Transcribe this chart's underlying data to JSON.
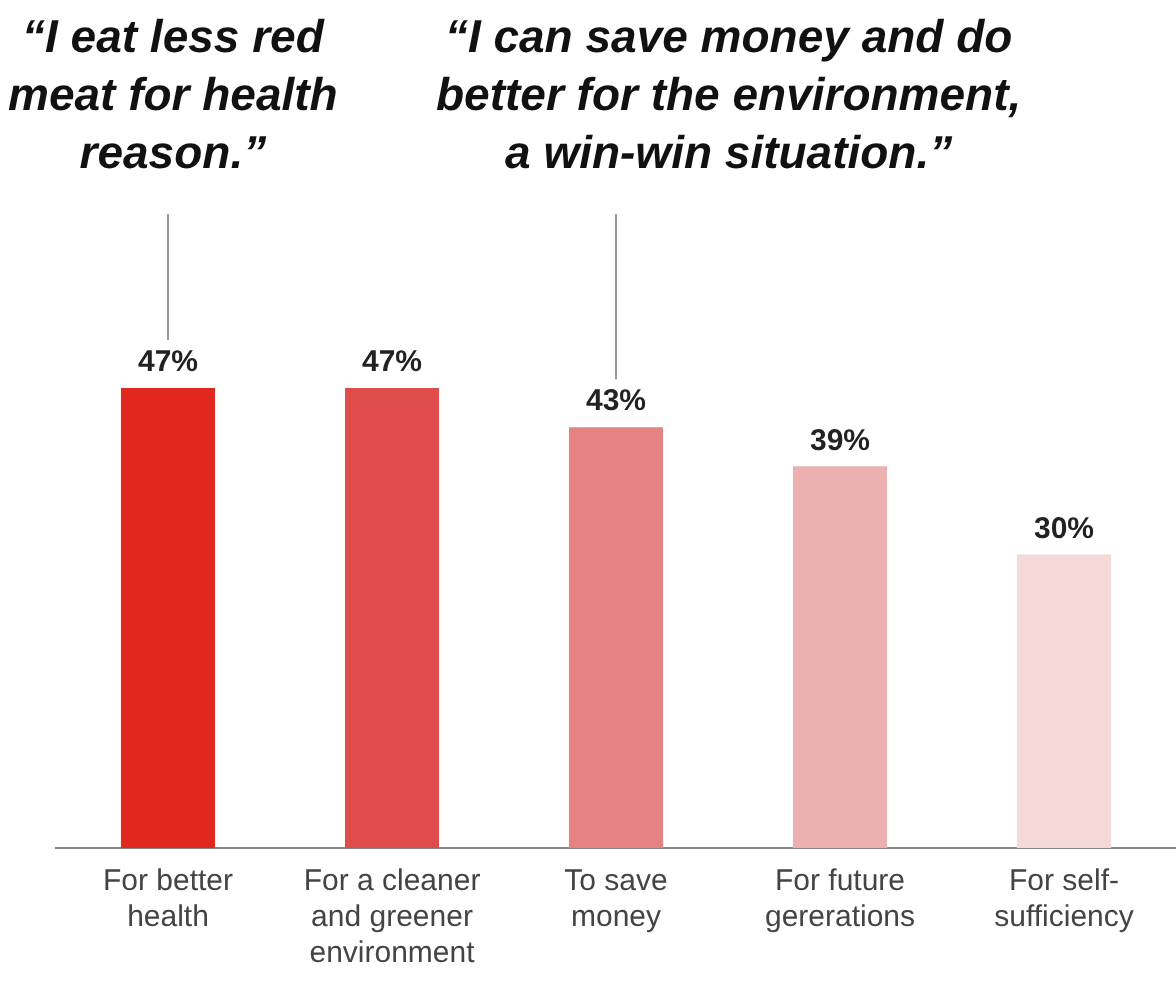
{
  "chart_data": {
    "type": "bar",
    "categories": [
      "For better health",
      "For a cleaner and greener environment",
      "To save money",
      "For future gererations",
      "For self-sufficiency"
    ],
    "values": [
      47,
      47,
      43,
      39,
      30
    ],
    "colors": [
      "#e0281e",
      "#e04b4b",
      "#e58282",
      "#edb0b0",
      "#f5d8d8"
    ],
    "data_labels": true,
    "value_labels": [
      "47%",
      "47%",
      "43%",
      "39%",
      "30%"
    ],
    "grid": false,
    "legend": false,
    "relative": false,
    "annotations": [
      "“I eat less red\nmeat for health\nreason.”",
      "“I can save money and do\nbetter for the environment,\na win-win situation.”"
    ]
  }
}
